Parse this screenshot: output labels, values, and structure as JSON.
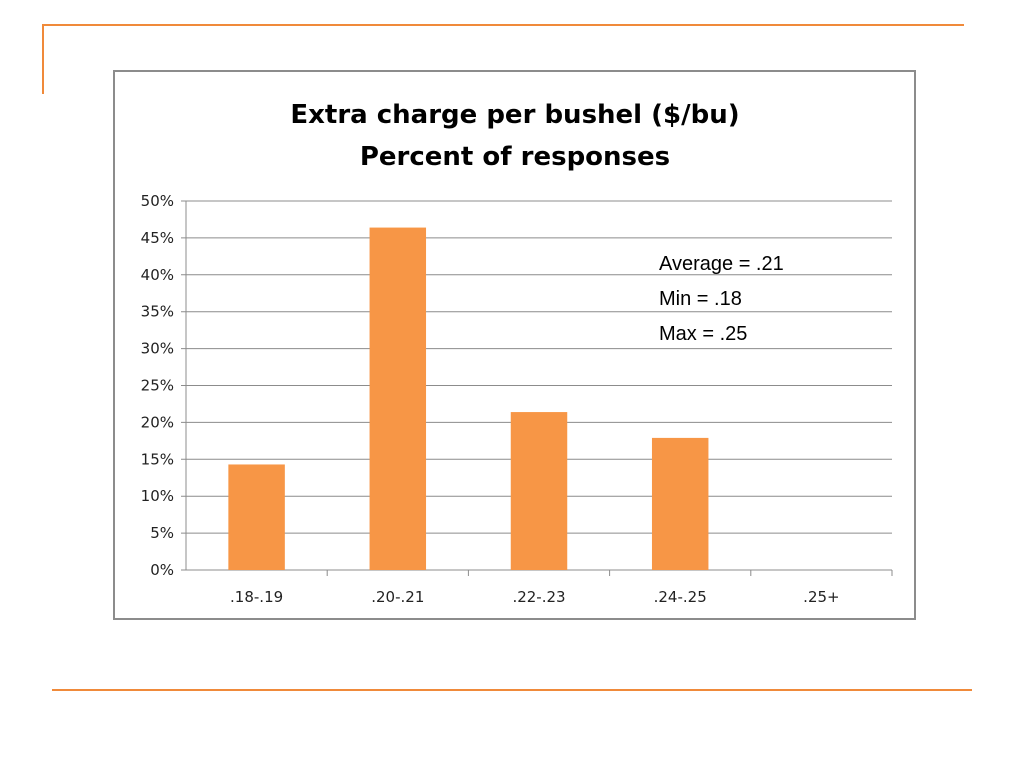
{
  "colors": {
    "accent": "#f08a3a",
    "bar": "#f79646",
    "grid": "#8c8c8c",
    "frame": "#8c8c8c"
  },
  "chart_data": {
    "type": "bar",
    "title": [
      "Extra charge per bushel ($/bu)",
      "Percent of responses"
    ],
    "categories": [
      ".18-.19",
      ".20-.21",
      ".22-.23",
      ".24-.25",
      ".25+"
    ],
    "values": [
      14.3,
      46.4,
      21.4,
      17.9,
      0
    ],
    "value_unit": "percent",
    "ylim": [
      0,
      50
    ],
    "yticks": [
      "0%",
      "5%",
      "10%",
      "15%",
      "20%",
      "25%",
      "30%",
      "35%",
      "40%",
      "45%",
      "50%"
    ],
    "grid": true,
    "legend": "none",
    "annotations": [
      "Average = .21",
      "Min = .18",
      "Max = .25"
    ]
  }
}
